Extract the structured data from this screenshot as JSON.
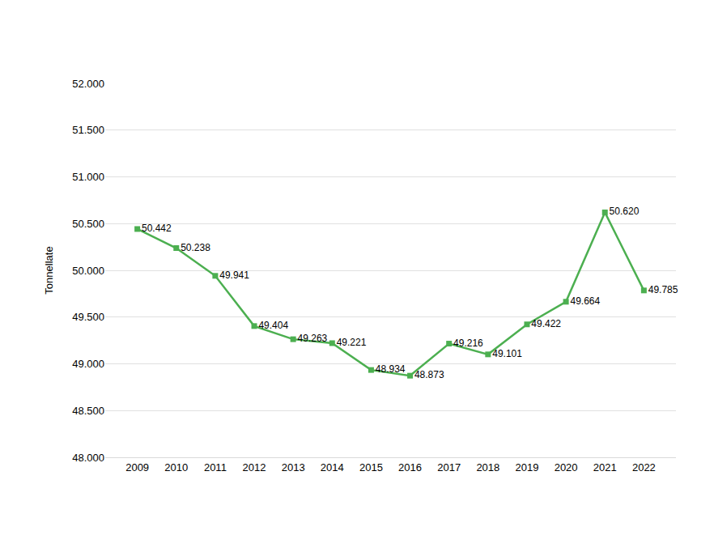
{
  "chart_data": {
    "type": "line",
    "y_label": "Tonnellate",
    "categories": [
      "2009",
      "2010",
      "2011",
      "2012",
      "2013",
      "2014",
      "2015",
      "2016",
      "2017",
      "2018",
      "2019",
      "2020",
      "2021",
      "2022"
    ],
    "values": [
      50442,
      50238,
      49941,
      49404,
      49263,
      49221,
      48934,
      48873,
      49216,
      49101,
      49422,
      49664,
      50620,
      49785
    ],
    "value_labels": [
      "50.442",
      "50.238",
      "49.941",
      "49.404",
      "49.263",
      "49.221",
      "48.934",
      "48.873",
      "49.216",
      "49.101",
      "49.422",
      "49.664",
      "50.620",
      "49.785"
    ],
    "data_labels": true,
    "color": "#4caf50",
    "marker": "square",
    "line_style": "solid",
    "ylim": [
      48000,
      52000
    ],
    "yticks": [
      {
        "value": 48000,
        "label": "48.000"
      },
      {
        "value": 48500,
        "label": "48.500"
      },
      {
        "value": 49000,
        "label": "49.000"
      },
      {
        "value": 49500,
        "label": "49.500"
      },
      {
        "value": 50000,
        "label": "50.000"
      },
      {
        "value": 50500,
        "label": "50.500"
      },
      {
        "value": 51000,
        "label": "51.000"
      },
      {
        "value": 51500,
        "label": "51.500"
      },
      {
        "value": 52000,
        "label": "52.000"
      }
    ],
    "grid": true
  }
}
